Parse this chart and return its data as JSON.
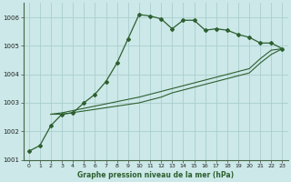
{
  "title": "Graphe pression niveau de la mer (hPa)",
  "background_color": "#cce8e8",
  "grid_color": "#aacece",
  "line_color": "#2d6030",
  "xlim": [
    -0.5,
    23.5
  ],
  "ylim": [
    1001.0,
    1006.5
  ],
  "yticks": [
    1001,
    1002,
    1003,
    1004,
    1005,
    1006
  ],
  "xticks": [
    0,
    1,
    2,
    3,
    4,
    5,
    6,
    7,
    8,
    9,
    10,
    11,
    12,
    13,
    14,
    15,
    16,
    17,
    18,
    19,
    20,
    21,
    22,
    23
  ],
  "series": [
    {
      "x": [
        0,
        1,
        2,
        3,
        4,
        5,
        6,
        7,
        8,
        9,
        10,
        11,
        12,
        13,
        14,
        15,
        16,
        17,
        18,
        19,
        20,
        21,
        22,
        23
      ],
      "y": [
        1001.3,
        1001.5,
        1002.2,
        1002.6,
        1002.65,
        1003.0,
        1003.3,
        1003.75,
        1004.4,
        1005.25,
        1006.1,
        1006.05,
        1005.95,
        1005.6,
        1005.9,
        1005.9,
        1005.55,
        1005.6,
        1005.55,
        1005.4,
        1005.3,
        1005.1,
        1005.1,
        1004.9
      ],
      "marker": true
    },
    {
      "x": [
        2,
        3,
        10,
        11,
        12,
        13,
        14,
        15,
        16,
        17,
        18,
        19,
        20,
        21,
        22,
        23
      ],
      "y": [
        1002.6,
        1002.6,
        1003.0,
        1003.1,
        1003.2,
        1003.35,
        1003.45,
        1003.55,
        1003.65,
        1003.75,
        1003.85,
        1003.95,
        1004.05,
        1004.4,
        1004.7,
        1004.9
      ],
      "marker": false
    },
    {
      "x": [
        2,
        3,
        10,
        11,
        12,
        13,
        14,
        15,
        16,
        17,
        18,
        19,
        20,
        21,
        22,
        23
      ],
      "y": [
        1002.6,
        1002.65,
        1003.2,
        1003.3,
        1003.4,
        1003.5,
        1003.6,
        1003.7,
        1003.8,
        1003.9,
        1004.0,
        1004.1,
        1004.2,
        1004.55,
        1004.85,
        1004.9
      ],
      "marker": false
    }
  ]
}
